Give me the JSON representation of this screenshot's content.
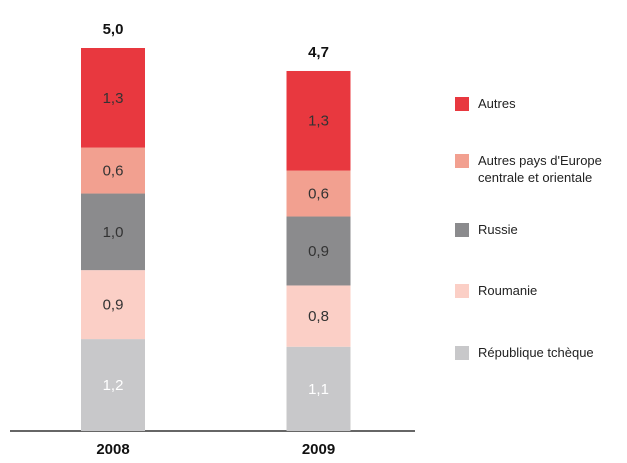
{
  "chart_data": {
    "type": "stacked_bar",
    "categories": [
      "2008",
      "2009"
    ],
    "series": [
      {
        "name": "République tchèque",
        "color": "#c8c8ca",
        "values": [
          1.2,
          1.1
        ],
        "value_labels": [
          "1,2",
          "1,1"
        ]
      },
      {
        "name": "Roumanie",
        "color": "#fbcfc6",
        "values": [
          0.9,
          0.8
        ],
        "value_labels": [
          "0,9",
          "0,8"
        ]
      },
      {
        "name": "Russie",
        "color": "#8b8b8d",
        "values": [
          1.0,
          0.9
        ],
        "value_labels": [
          "1,0",
          "0,9"
        ]
      },
      {
        "name": "Autres pays d'Europe centrale et orientale",
        "color": "#f2a090",
        "values": [
          0.6,
          0.6
        ],
        "value_labels": [
          "0,6",
          "0,6"
        ]
      },
      {
        "name": "Autres",
        "color": "#e8383f",
        "values": [
          1.3,
          1.3
        ],
        "value_labels": [
          "1,3",
          "1,3"
        ]
      }
    ],
    "totals": {
      "values": [
        5.0,
        4.7
      ],
      "value_labels": [
        "5,0",
        "4,7"
      ]
    },
    "legend": "right"
  }
}
